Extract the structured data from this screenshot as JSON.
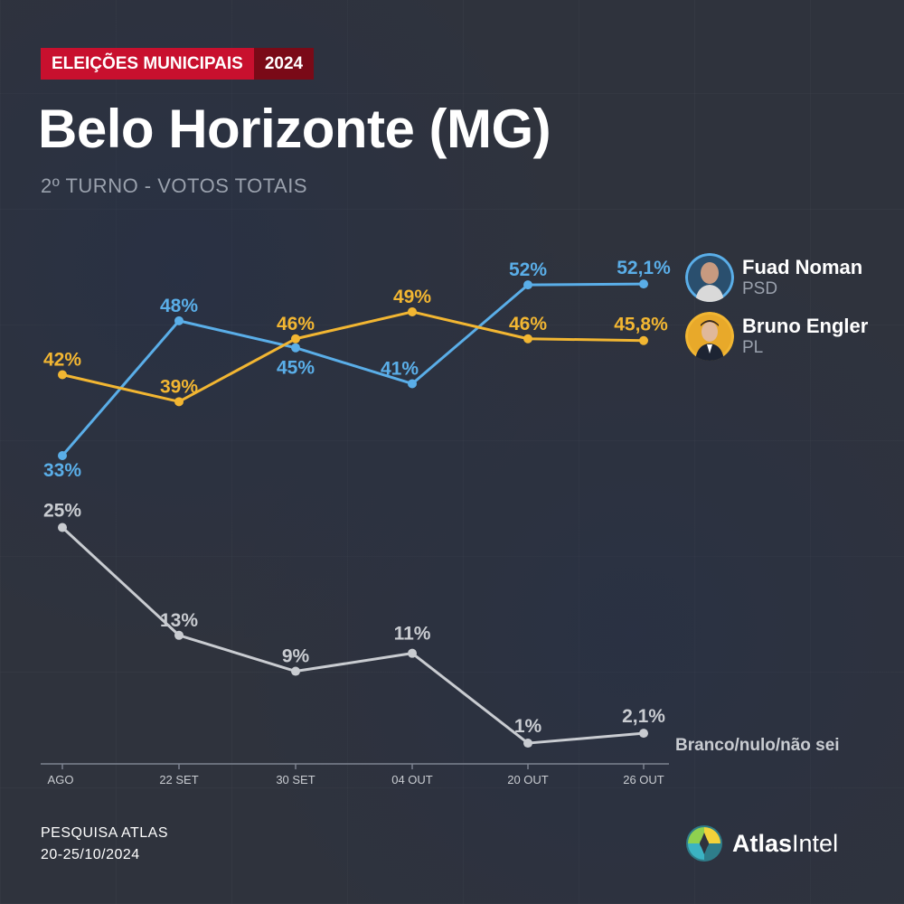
{
  "header": {
    "tag": "ELEIÇÕES MUNICIPAIS",
    "year": "2024",
    "title": "Belo Horizonte (MG)",
    "subtitle": "2º TURNO - VOTOS TOTAIS"
  },
  "candidates": [
    {
      "name": "Fuad Noman",
      "party": "PSD",
      "color": "#5aaee8"
    },
    {
      "name": "Bruno Engler",
      "party": "PL",
      "color": "#f2b632"
    }
  ],
  "chart_data": {
    "type": "line",
    "categories": [
      "AGO",
      "22 SET",
      "30 SET",
      "04 OUT",
      "20 OUT",
      "26 OUT"
    ],
    "series": [
      {
        "name": "Fuad Noman",
        "color": "#5aaee8",
        "values": [
          33,
          48,
          45,
          41,
          52,
          52.1
        ],
        "labels": [
          "33%",
          "48%",
          "45%",
          "41%",
          "52%",
          "52,1%"
        ]
      },
      {
        "name": "Bruno Engler",
        "color": "#f2b632",
        "values": [
          42,
          39,
          46,
          49,
          46,
          45.8
        ],
        "labels": [
          "42%",
          "39%",
          "46%",
          "49%",
          "46%",
          "45,8%"
        ]
      },
      {
        "name": "Branco/nulo/não sei",
        "color": "#c9ccd1",
        "values": [
          25,
          13,
          9,
          11,
          1,
          2.1
        ],
        "labels": [
          "25%",
          "13%",
          "9%",
          "11%",
          "1%",
          "2,1%"
        ]
      }
    ],
    "grid": false
  },
  "footer": {
    "source_line1": "PESQUISA ATLAS",
    "source_line2": "20-25/10/2024",
    "brand_bold": "Atlas",
    "brand_rest": "Intel"
  }
}
